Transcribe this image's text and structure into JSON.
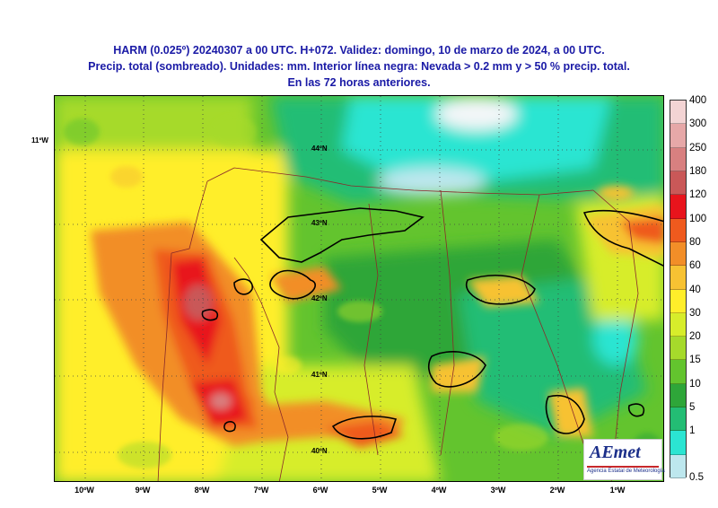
{
  "title": {
    "line1": "HARM (0.025º) 20240307 a 00 UTC. H+072. Validez: domingo, 10 de marzo de 2024, a 00 UTC.",
    "line2": "Precip. total (sombreado). Unidades: mm. Interior línea negra: Nevada > 0.2 mm y > 50 % precip. total.",
    "line3": "En las 72 horas anteriores."
  },
  "corner_label": "11ºW",
  "lon_labels": [
    "10ºW",
    "9ºW",
    "8ºW",
    "7ºW",
    "6ºW",
    "5ºW",
    "4ºW",
    "3ºW",
    "2ºW",
    "1ºW"
  ],
  "lat_labels": [
    "44ºN",
    "43ºN",
    "42ºN",
    "41ºN",
    "40ºN"
  ],
  "colorbar": {
    "ticks": [
      "400",
      "300",
      "250",
      "180",
      "120",
      "100",
      "80",
      "60",
      "40",
      "30",
      "20",
      "15",
      "10",
      "5",
      "1",
      "0.5"
    ],
    "colors": [
      "#f3d4d4",
      "#e6a8a8",
      "#d88080",
      "#c95858",
      "#e8141c",
      "#ef5a1e",
      "#f28e28",
      "#f7c233",
      "#ffee2a",
      "#d7ed2b",
      "#a6da2b",
      "#63c42e",
      "#2ea639",
      "#23bd74",
      "#2be5d2",
      "#bde7ee"
    ]
  },
  "logo": {
    "name": "AEmet",
    "subtitle": "Agencia Estatal de Meteorología"
  },
  "colors": {
    "title": "#1a1aa6",
    "sea_blue": "#2be5d2",
    "land_green": "#2ea639"
  }
}
